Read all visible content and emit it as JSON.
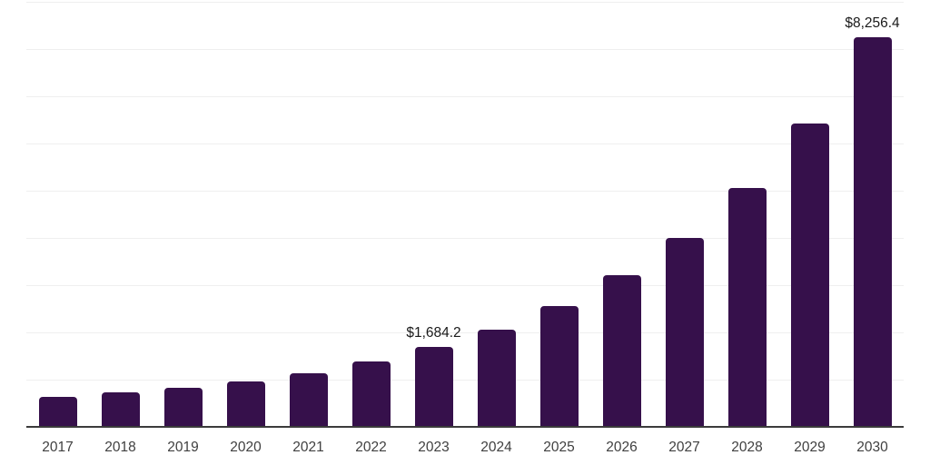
{
  "chart_data": {
    "type": "bar",
    "title": "",
    "xlabel": "",
    "ylabel": "",
    "categories": [
      "2017",
      "2018",
      "2019",
      "2020",
      "2021",
      "2022",
      "2023",
      "2024",
      "2025",
      "2026",
      "2027",
      "2028",
      "2029",
      "2030"
    ],
    "values": [
      640,
      730,
      820,
      960,
      1135,
      1385,
      1684.2,
      2055,
      2555,
      3205,
      4005,
      5060,
      6415,
      8256.4
    ],
    "data_labels": [
      "",
      "",
      "",
      "",
      "",
      "",
      "$1,684.2",
      "",
      "",
      "",
      "",
      "",
      "",
      "$8,256.4"
    ],
    "ylim": [
      0,
      9000
    ],
    "gridline_step": 1000,
    "grid": true,
    "legend": false,
    "legend_position": "none",
    "colors": {
      "bar": "#36104B",
      "axis_line": "#3B3B3B",
      "gridline": "#EFEFEF",
      "value_label": "#1A1A1A",
      "tick_label": "#404040",
      "background": "#FFFFFF"
    }
  }
}
